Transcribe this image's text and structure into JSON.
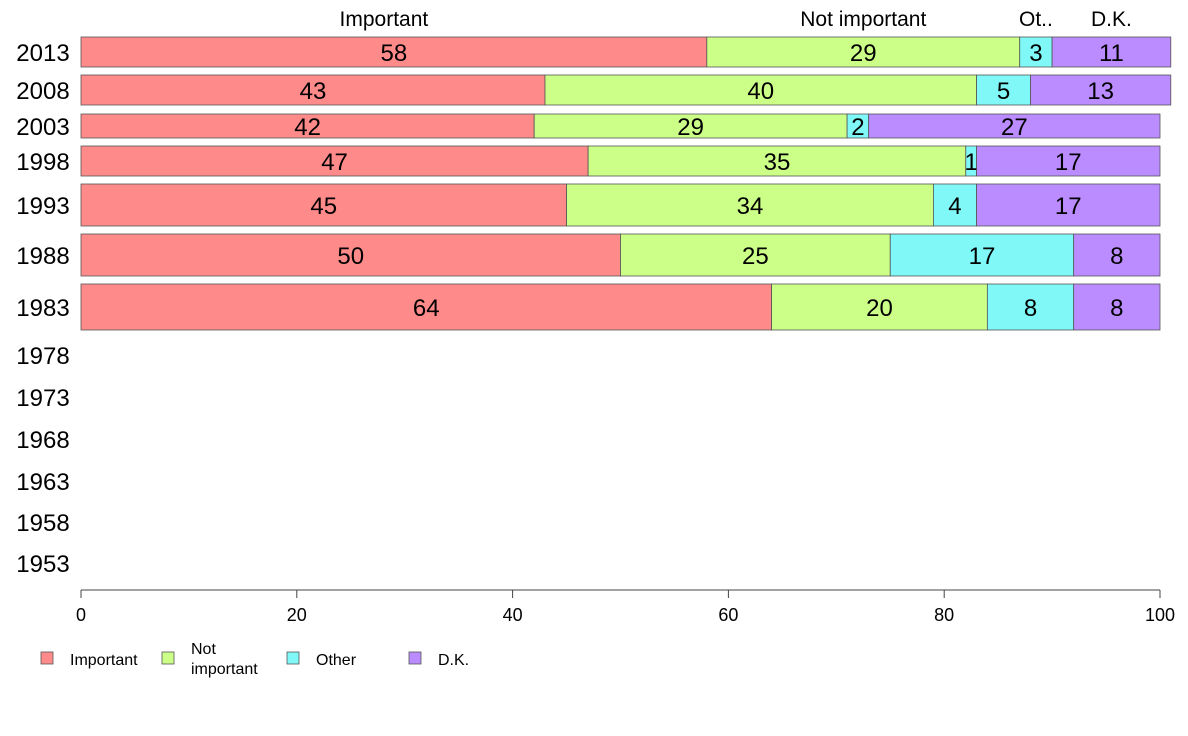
{
  "chart_data": {
    "type": "bar",
    "orientation": "horizontal",
    "stacked": true,
    "title": "",
    "xlabel": "",
    "ylabel": "",
    "xlim": [
      0,
      100
    ],
    "x_ticks": [
      "0",
      "20",
      "40",
      "60",
      "80",
      "100"
    ],
    "categories": [
      "2013",
      "2008",
      "2003",
      "1998",
      "1993",
      "1988",
      "1983",
      "1978",
      "1973",
      "1968",
      "1963",
      "1958",
      "1953"
    ],
    "series": [
      {
        "name": "Important",
        "color": "#ff8a8a",
        "values": [
          58,
          43,
          42,
          47,
          45,
          50,
          64,
          null,
          null,
          null,
          null,
          null,
          null
        ]
      },
      {
        "name": "Not important",
        "color": "#ccff88",
        "values": [
          29,
          40,
          29,
          35,
          34,
          25,
          20,
          null,
          null,
          null,
          null,
          null,
          null
        ]
      },
      {
        "name": "Other",
        "color": "#80f8f8",
        "values": [
          3,
          5,
          2,
          1,
          4,
          17,
          8,
          null,
          null,
          null,
          null,
          null,
          null
        ]
      },
      {
        "name": "D.K.",
        "color": "#bb8cff",
        "values": [
          11,
          13,
          27,
          17,
          17,
          8,
          8,
          null,
          null,
          null,
          null,
          null,
          null
        ]
      }
    ],
    "top_labels": [
      "Important",
      "Not important",
      "Ot..",
      "D.K."
    ],
    "legend": {
      "position": "bottom-left",
      "items": [
        {
          "label": "Important",
          "color": "#ff8a8a"
        },
        {
          "label_lines": [
            "Not",
            "important"
          ],
          "color": "#ccff88"
        },
        {
          "label": "Other",
          "color": "#80f8f8"
        },
        {
          "label": "D.K.",
          "color": "#bb8cff"
        }
      ]
    },
    "grid": false
  }
}
